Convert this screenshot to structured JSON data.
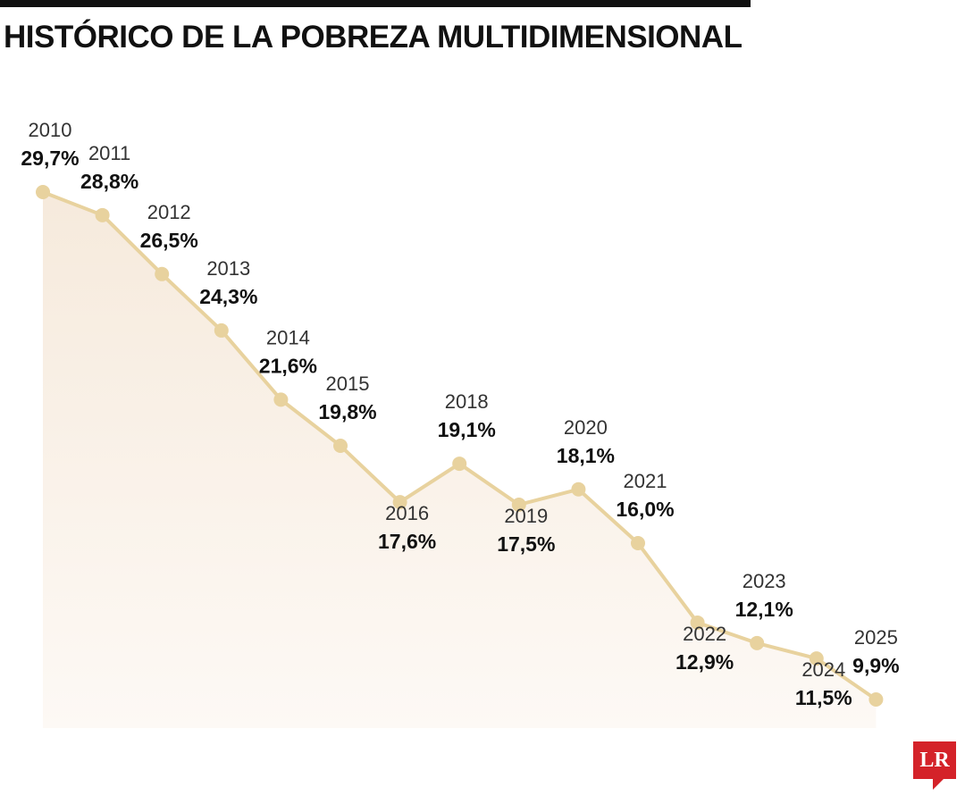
{
  "header": {
    "title": "HISTÓRICO DE LA POBREZA MULTIDIMENSIONAL"
  },
  "logo": {
    "text": "LR",
    "color": "#d42229"
  },
  "colors": {
    "line": "#e8d29e",
    "marker": "#e8d29e",
    "area": "#f8efe6"
  },
  "chart_data": {
    "type": "area",
    "title": "HISTÓRICO DE LA POBREZA MULTIDIMENSIONAL",
    "xlabel": "",
    "ylabel": "",
    "unit": "%",
    "grid": false,
    "legend": "none",
    "points": [
      {
        "year": "2010",
        "value": 29.7,
        "label": "29,7%"
      },
      {
        "year": "2011",
        "value": 28.8,
        "label": "28,8%"
      },
      {
        "year": "2012",
        "value": 26.5,
        "label": "26,5%"
      },
      {
        "year": "2013",
        "value": 24.3,
        "label": "24,3%"
      },
      {
        "year": "2014",
        "value": 21.6,
        "label": "21,6%"
      },
      {
        "year": "2015",
        "value": 19.8,
        "label": "19,8%"
      },
      {
        "year": "2016",
        "value": 17.6,
        "label": "17,6%"
      },
      {
        "year": "2018",
        "value": 19.1,
        "label": "19,1%"
      },
      {
        "year": "2019",
        "value": 17.5,
        "label": "17,5%"
      },
      {
        "year": "2020",
        "value": 18.1,
        "label": "18,1%"
      },
      {
        "year": "2021",
        "value": 16.0,
        "label": "16,0%"
      },
      {
        "year": "2022",
        "value": 12.9,
        "label": "12,9%"
      },
      {
        "year": "2023",
        "value": 12.1,
        "label": "12,1%"
      },
      {
        "year": "2024",
        "value": 11.5,
        "label": "11,5%"
      },
      {
        "year": "2025",
        "value": 9.9,
        "label": "9,9%"
      }
    ]
  }
}
